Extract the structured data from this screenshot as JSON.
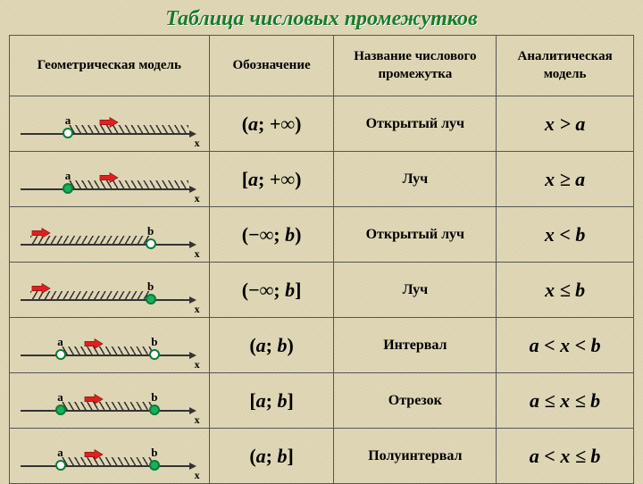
{
  "title": "Таблица числовых промежутков",
  "headers": {
    "c1": "Геометрическая модель",
    "c2": "Обозначение",
    "c3": "Название числового промежутка",
    "c4": "Аналитическая модель"
  },
  "rows": [
    {
      "model": {
        "left": {
          "label": "a",
          "pos": 28,
          "closed": false
        },
        "hatch": {
          "from": 28,
          "to": 92,
          "dir": "fwd"
        },
        "arrows": [
          {
            "pos": 50
          }
        ]
      },
      "notation": "(a; +∞)",
      "name": "Открытый луч",
      "formula": "x > a"
    },
    {
      "model": {
        "left": {
          "label": "a",
          "pos": 28,
          "closed": true
        },
        "hatch": {
          "from": 28,
          "to": 92,
          "dir": "fwd"
        },
        "arrows": [
          {
            "pos": 50
          }
        ]
      },
      "notation": "[a; +∞)",
      "name": "Луч",
      "formula": "x ≥ a"
    },
    {
      "model": {
        "right": {
          "label": "b",
          "pos": 72,
          "closed": false
        },
        "hatch": {
          "from": 8,
          "to": 72,
          "dir": "back"
        },
        "arrows": [
          {
            "pos": 14
          }
        ]
      },
      "notation": "(−∞; b)",
      "name": "Открытый луч",
      "formula": "x < b"
    },
    {
      "model": {
        "right": {
          "label": "b",
          "pos": 72,
          "closed": true
        },
        "hatch": {
          "from": 8,
          "to": 72,
          "dir": "back"
        },
        "arrows": [
          {
            "pos": 14
          }
        ]
      },
      "notation": "(−∞; b]",
      "name": "Луч",
      "formula": "x ≤ b"
    },
    {
      "model": {
        "left": {
          "label": "a",
          "pos": 24,
          "closed": false
        },
        "right": {
          "label": "b",
          "pos": 74,
          "closed": false
        },
        "hatch": {
          "from": 24,
          "to": 74,
          "dir": "fwd"
        },
        "arrows": [
          {
            "pos": 42
          }
        ]
      },
      "notation": "(a; b)",
      "name": "Интервал",
      "formula": "a < x < b"
    },
    {
      "model": {
        "left": {
          "label": "a",
          "pos": 24,
          "closed": true
        },
        "right": {
          "label": "b",
          "pos": 74,
          "closed": true
        },
        "hatch": {
          "from": 24,
          "to": 74,
          "dir": "fwd"
        },
        "arrows": [
          {
            "pos": 42
          }
        ]
      },
      "notation": "[a; b]",
      "name": "Отрезок",
      "formula": "a ≤ x ≤ b"
    },
    {
      "model": {
        "left": {
          "label": "a",
          "pos": 24,
          "closed": false
        },
        "right": {
          "label": "b",
          "pos": 74,
          "closed": true
        },
        "hatch": {
          "from": 24,
          "to": 74,
          "dir": "fwd"
        },
        "arrows": [
          {
            "pos": 42
          }
        ]
      },
      "notation": "(a; b]",
      "name": "Полуинтервал",
      "formula": "a < x ≤ b"
    }
  ],
  "axis_label": "x",
  "colors": {
    "arrow_fill": "#e02020",
    "arrow_shadow": "#6a1010"
  }
}
